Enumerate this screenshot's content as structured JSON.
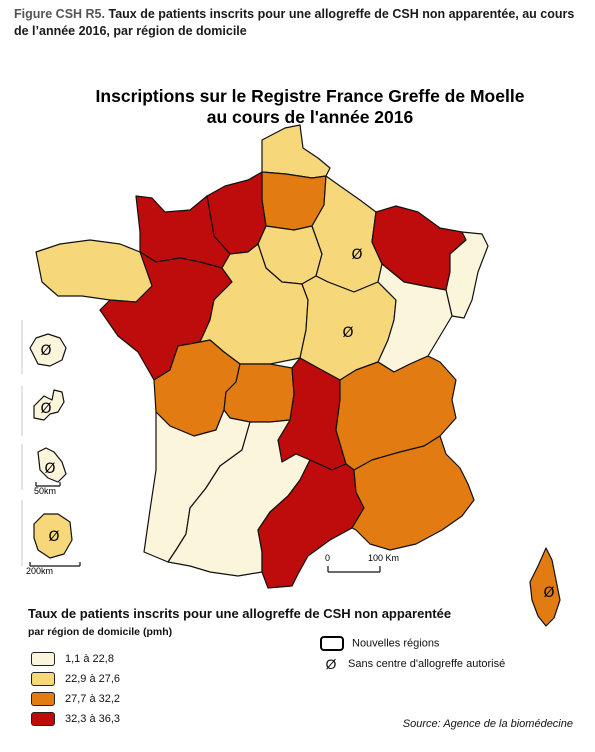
{
  "caption": {
    "figure_number": "Figure CSH R5.",
    "text": "Taux de patients inscrits pour une allogreffe de CSH non apparentée, au cours de l’année 2016, par région de domicile"
  },
  "title": {
    "line1": "Inscriptions sur le Registre France Greffe de Moelle",
    "line2": "au cours de l'année 2016"
  },
  "colors": {
    "c1": "#fbf5dc",
    "c2": "#f6d77a",
    "c3": "#e27c12",
    "c4": "#be0b0b",
    "border": "#111111"
  },
  "regions": [
    {
      "id": "nord",
      "class": 2
    },
    {
      "id": "picardie",
      "class": 3
    },
    {
      "id": "haute-normandie",
      "class": 4
    },
    {
      "id": "basse-normandie",
      "class": 4
    },
    {
      "id": "bretagne",
      "class": 2
    },
    {
      "id": "ile-de-france",
      "class": 2
    },
    {
      "id": "champagne",
      "class": 2,
      "no_center": true
    },
    {
      "id": "lorraine",
      "class": 4
    },
    {
      "id": "alsace",
      "class": 1
    },
    {
      "id": "pays-de-la-loire",
      "class": 4
    },
    {
      "id": "centre",
      "class": 2
    },
    {
      "id": "bourgogne",
      "class": 2,
      "no_center": true
    },
    {
      "id": "franche-comte",
      "class": 1
    },
    {
      "id": "poitou-charentes",
      "class": 3
    },
    {
      "id": "limousin",
      "class": 3
    },
    {
      "id": "auvergne",
      "class": 4
    },
    {
      "id": "rhone-alpes",
      "class": 3
    },
    {
      "id": "aquitaine",
      "class": 1
    },
    {
      "id": "midi-pyrenees",
      "class": 1
    },
    {
      "id": "languedoc",
      "class": 4
    },
    {
      "id": "paca",
      "class": 3
    },
    {
      "id": "corse",
      "class": 3,
      "no_center": true
    },
    {
      "id": "guadeloupe",
      "class": 1,
      "no_center": true
    },
    {
      "id": "martinique",
      "class": 1,
      "no_center": true
    },
    {
      "id": "guyane",
      "class": 1,
      "no_center": true
    },
    {
      "id": "reunion",
      "class": 2,
      "no_center": true
    }
  ],
  "scale": {
    "zero": "0",
    "distance": "100 Km"
  },
  "inset_scales": {
    "small": "50km",
    "large": "200km"
  },
  "no_center_symbol": "Ø",
  "legend": {
    "title": "Taux de patients inscrits pour une allogreffe de CSH non apparentée",
    "subtitle": "par région de domicile (pmh)",
    "items": [
      {
        "label": "1,1 à 22,8",
        "color": "#fbf5dc"
      },
      {
        "label": "22,9 à 27,6",
        "color": "#f6d77a"
      },
      {
        "label": "27,7 à 32,2",
        "color": "#e27c12"
      },
      {
        "label": "32,3 à 36,3",
        "color": "#be0b0b"
      }
    ],
    "new_regions": "Nouvelles régions",
    "no_center": "Sans centre d'allogreffe autorisé"
  },
  "source": "Source: Agence de la biomédecine"
}
